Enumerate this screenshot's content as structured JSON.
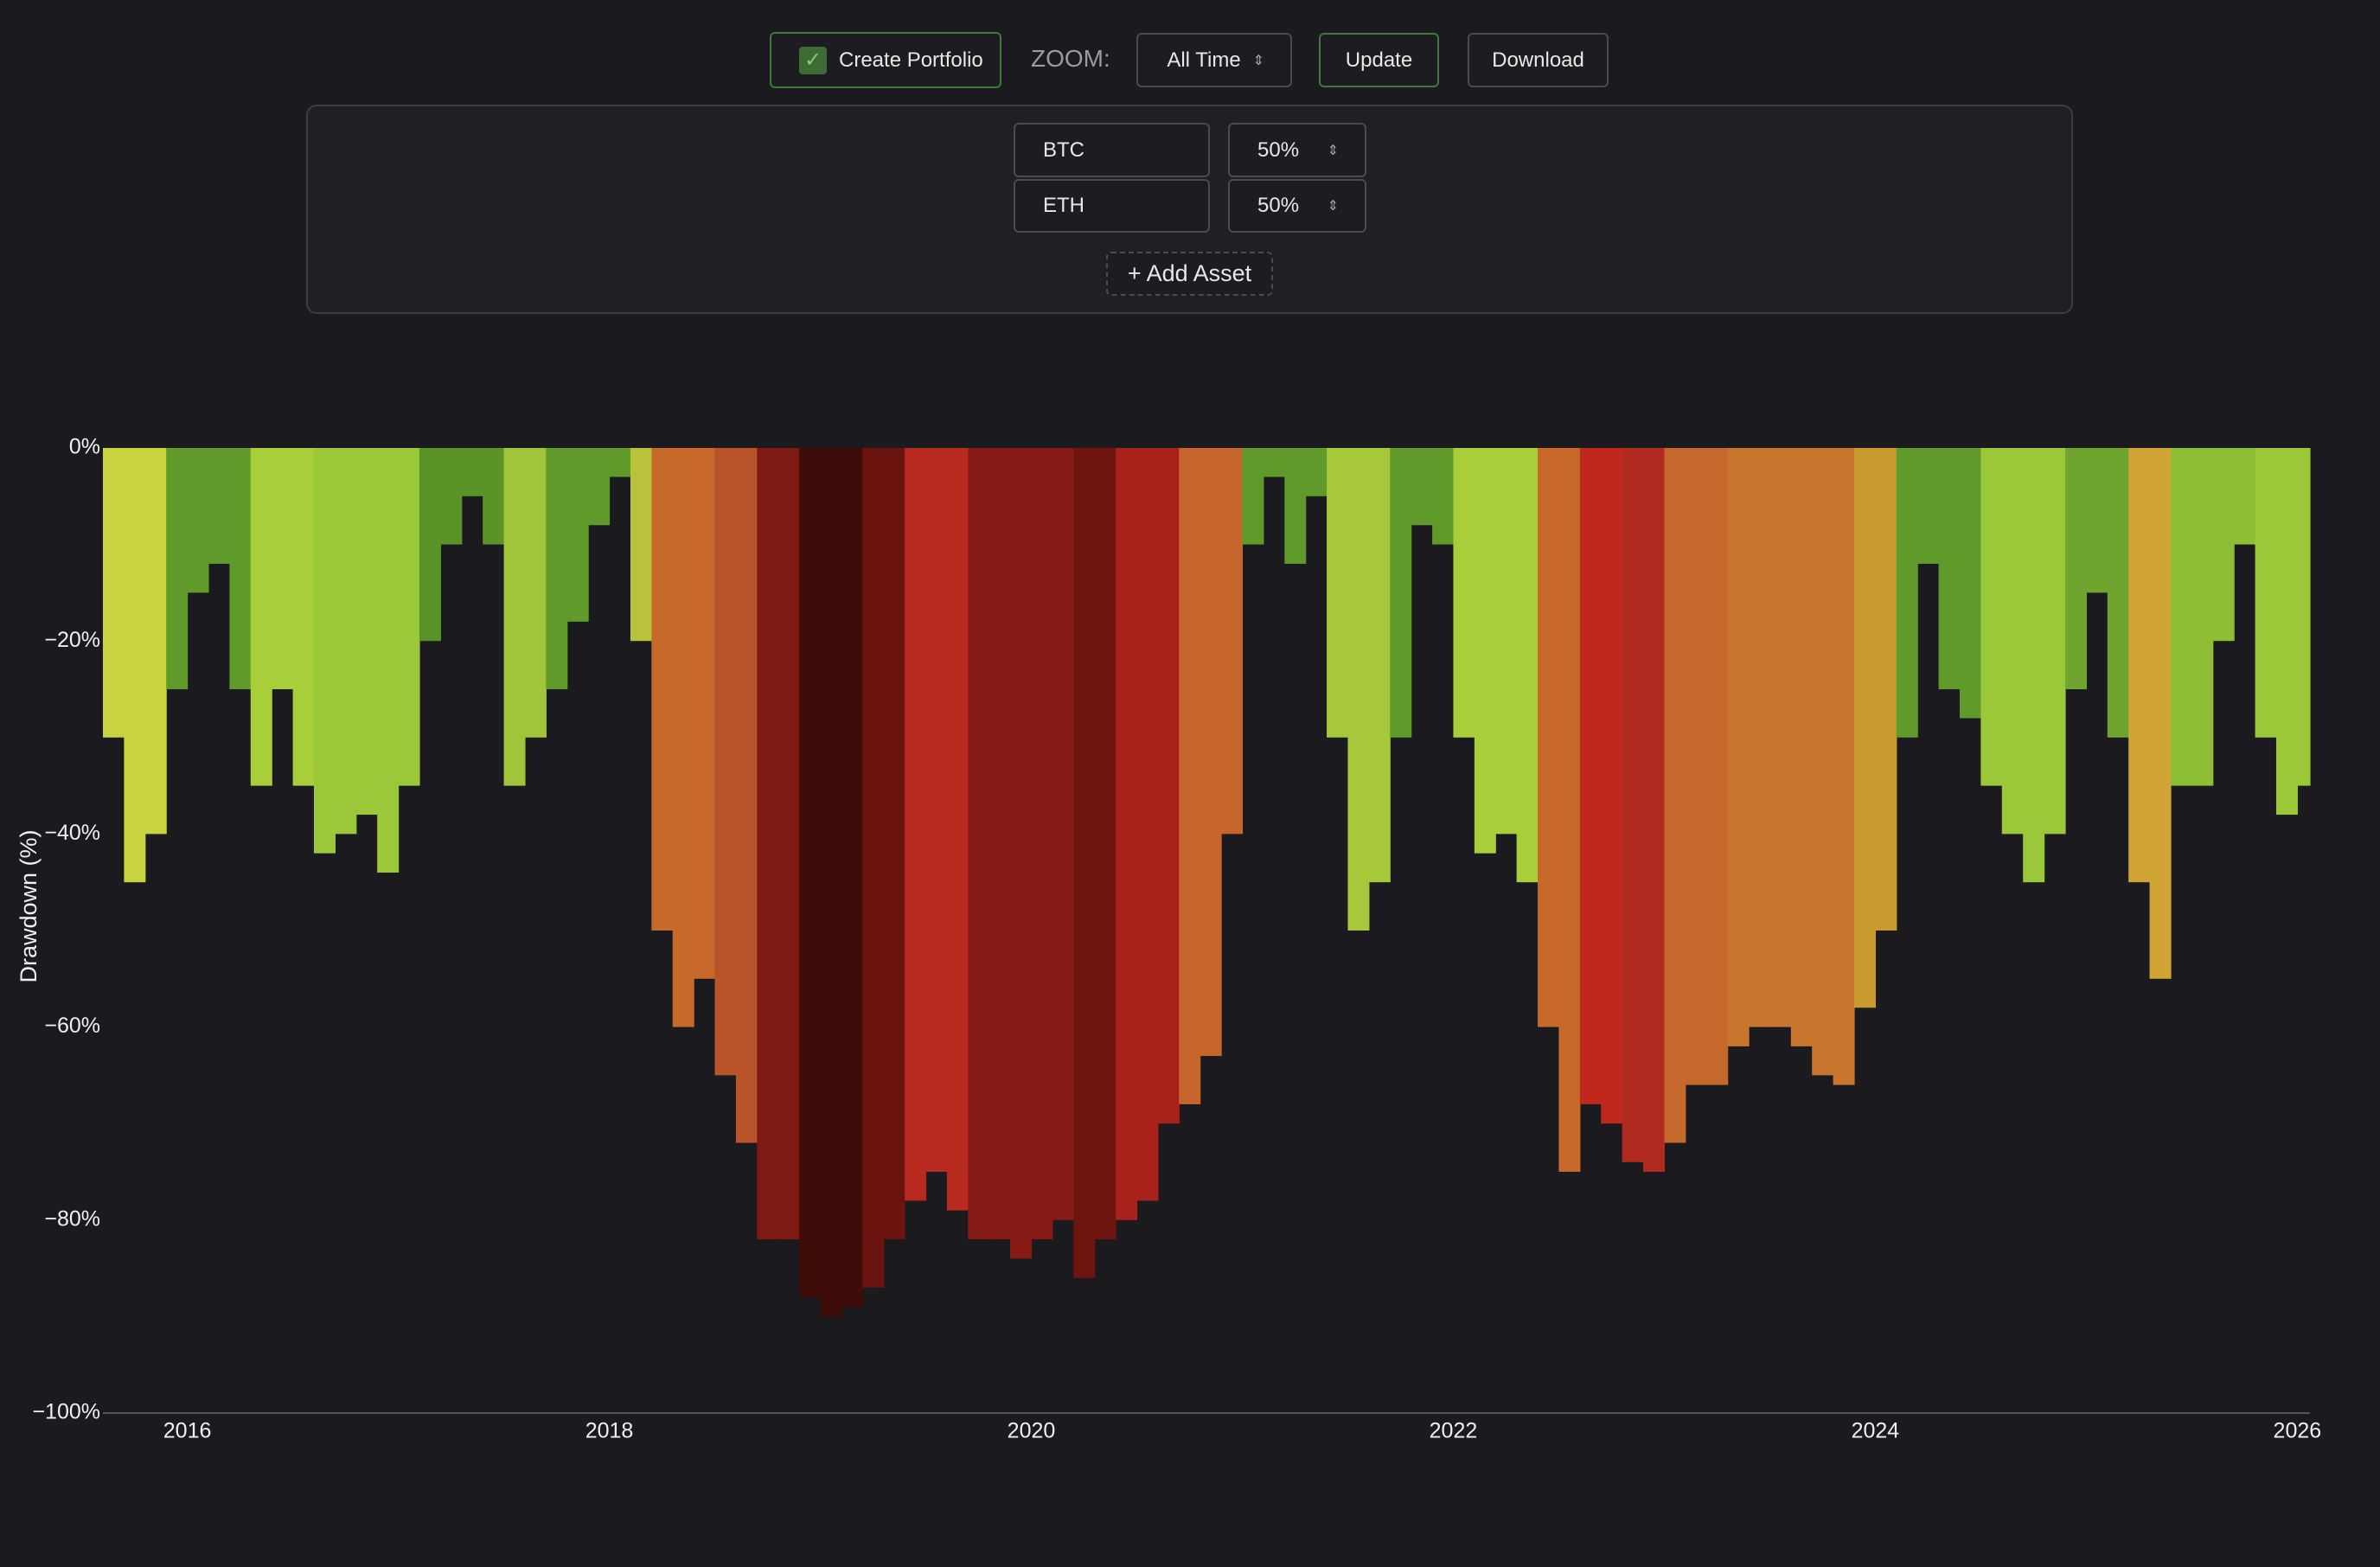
{
  "toolbar": {
    "create_portfolio": "Create Portfolio",
    "zoom_label": "ZOOM:",
    "zoom_value": "All Time",
    "update": "Update",
    "download": "Download"
  },
  "portfolio": {
    "assets": [
      {
        "name": "BTC",
        "weight": "50%"
      },
      {
        "name": "ETH",
        "weight": "50%"
      }
    ],
    "add_asset": "+ Add Asset"
  },
  "chart_data": {
    "type": "bar",
    "y_label": "Drawdown (%)",
    "x": [
      2015.6,
      2015.7,
      2015.8,
      2015.9,
      2016.0,
      2016.1,
      2016.2,
      2016.3,
      2016.4,
      2016.5,
      2016.6,
      2016.7,
      2016.8,
      2016.9,
      2017.0,
      2017.1,
      2017.2,
      2017.3,
      2017.4,
      2017.5,
      2017.6,
      2017.7,
      2017.8,
      2017.9,
      2018.0,
      2018.1,
      2018.2,
      2018.3,
      2018.4,
      2018.5,
      2018.6,
      2018.7,
      2018.8,
      2018.9,
      2019.0,
      2019.1,
      2019.2,
      2019.3,
      2019.4,
      2019.5,
      2019.6,
      2019.7,
      2019.8,
      2019.9,
      2020.0,
      2020.1,
      2020.2,
      2020.3,
      2020.4,
      2020.5,
      2020.6,
      2020.7,
      2020.8,
      2020.9,
      2021.0,
      2021.1,
      2021.2,
      2021.3,
      2021.4,
      2021.5,
      2021.6,
      2021.7,
      2021.8,
      2021.9,
      2022.0,
      2022.1,
      2022.2,
      2022.3,
      2022.4,
      2022.5,
      2022.6,
      2022.7,
      2022.8,
      2022.9,
      2023.0,
      2023.1,
      2023.2,
      2023.3,
      2023.4,
      2023.5,
      2023.6,
      2023.7,
      2023.8,
      2023.9,
      2024.0,
      2024.1,
      2024.2,
      2024.3,
      2024.4,
      2024.5,
      2024.6,
      2024.7,
      2024.8,
      2024.9,
      2025.0,
      2025.1,
      2025.2,
      2025.3,
      2025.4,
      2025.5,
      2025.6,
      2025.7,
      2025.8,
      2025.9,
      2026.0
    ],
    "values": [
      -30,
      -45,
      -40,
      -25,
      -15,
      -12,
      -25,
      -35,
      -25,
      -35,
      -42,
      -40,
      -38,
      -44,
      -35,
      -20,
      -10,
      -5,
      -10,
      -35,
      -30,
      -25,
      -18,
      -8,
      -3,
      -20,
      -50,
      -60,
      -55,
      -65,
      -72,
      -82,
      -82,
      -88,
      -90,
      -89,
      -87,
      -82,
      -78,
      -75,
      -79,
      -82,
      -82,
      -84,
      -82,
      -80,
      -86,
      -82,
      -80,
      -78,
      -70,
      -68,
      -63,
      -40,
      -10,
      -3,
      -12,
      -5,
      -30,
      -50,
      -45,
      -30,
      -8,
      -10,
      -30,
      -42,
      -40,
      -45,
      -60,
      -75,
      -68,
      -70,
      -74,
      -75,
      -72,
      -66,
      -66,
      -62,
      -60,
      -60,
      -62,
      -65,
      -66,
      -58,
      -50,
      -30,
      -12,
      -25,
      -28,
      -35,
      -40,
      -45,
      -40,
      -25,
      -15,
      -30,
      -45,
      -55,
      -35,
      -35,
      -20,
      -10,
      -30,
      -38,
      -35
    ],
    "colors": [
      "#c9d23f",
      "#c9d23f",
      "#c9d23f",
      "#5f9a2a",
      "#5f9a2a",
      "#5f9a2a",
      "#5f9a2a",
      "#a8cf3a",
      "#a8cf3a",
      "#a8cf3a",
      "#9bc838",
      "#9bc838",
      "#9bc838",
      "#9bc838",
      "#9bc838",
      "#5a9428",
      "#5a9428",
      "#5a9428",
      "#5a9428",
      "#a0c43a",
      "#a0c43a",
      "#5f9a2a",
      "#5f9a2a",
      "#5f9a2a",
      "#5f9a2a",
      "#b8c23a",
      "#c8692c",
      "#c8692c",
      "#c8692c",
      "#b9532a",
      "#b9532a",
      "#7e1a14",
      "#7e1a14",
      "#3e0c09",
      "#3e0c09",
      "#3e0c09",
      "#6a130f",
      "#6a130f",
      "#b82a20",
      "#b82a20",
      "#b82a20",
      "#861a15",
      "#861a15",
      "#861a15",
      "#861a15",
      "#861a15",
      "#6e1510",
      "#6e1510",
      "#a8221b",
      "#a8221b",
      "#a8221b",
      "#c6652c",
      "#c6652c",
      "#c6652c",
      "#5f9a2a",
      "#5f9a2a",
      "#5f9a2a",
      "#5f9a2a",
      "#a6c83a",
      "#a6c83a",
      "#a6c83a",
      "#5f9a2a",
      "#5f9a2a",
      "#5f9a2a",
      "#a8cf3a",
      "#a8cf3a",
      "#a8cf3a",
      "#a8cf3a",
      "#c8692c",
      "#c8692c",
      "#c0281e",
      "#c0281e",
      "#b02a1f",
      "#b02a1f",
      "#c5682c",
      "#c5682c",
      "#c5682c",
      "#c8752e",
      "#c8752e",
      "#c8752e",
      "#c8752e",
      "#c8752e",
      "#c8752e",
      "#c89a30",
      "#c89a30",
      "#5f9a2a",
      "#5f9a2a",
      "#5f9a2a",
      "#5f9a2a",
      "#9bc838",
      "#9bc838",
      "#9bc838",
      "#9bc838",
      "#6fa52e",
      "#6fa52e",
      "#6fa52e",
      "#d0a535",
      "#d0a535",
      "#8ebe36",
      "#8ebe36",
      "#8ebe36",
      "#8ebe36",
      "#9bc838",
      "#9bc838",
      "#9bc838"
    ],
    "xlim": [
      2015.6,
      2026.06
    ],
    "xticks": [
      2016,
      2018,
      2020,
      2022,
      2024,
      2026
    ],
    "ylim": [
      -100,
      0
    ],
    "yticks": [
      {
        "value": 0,
        "label": "0%"
      },
      {
        "value": -20,
        "label": "−20%"
      },
      {
        "value": -40,
        "label": "−40%"
      },
      {
        "value": -60,
        "label": "−60%"
      },
      {
        "value": -80,
        "label": "−80%"
      },
      {
        "value": -100,
        "label": "−100%"
      }
    ],
    "grid": false
  }
}
